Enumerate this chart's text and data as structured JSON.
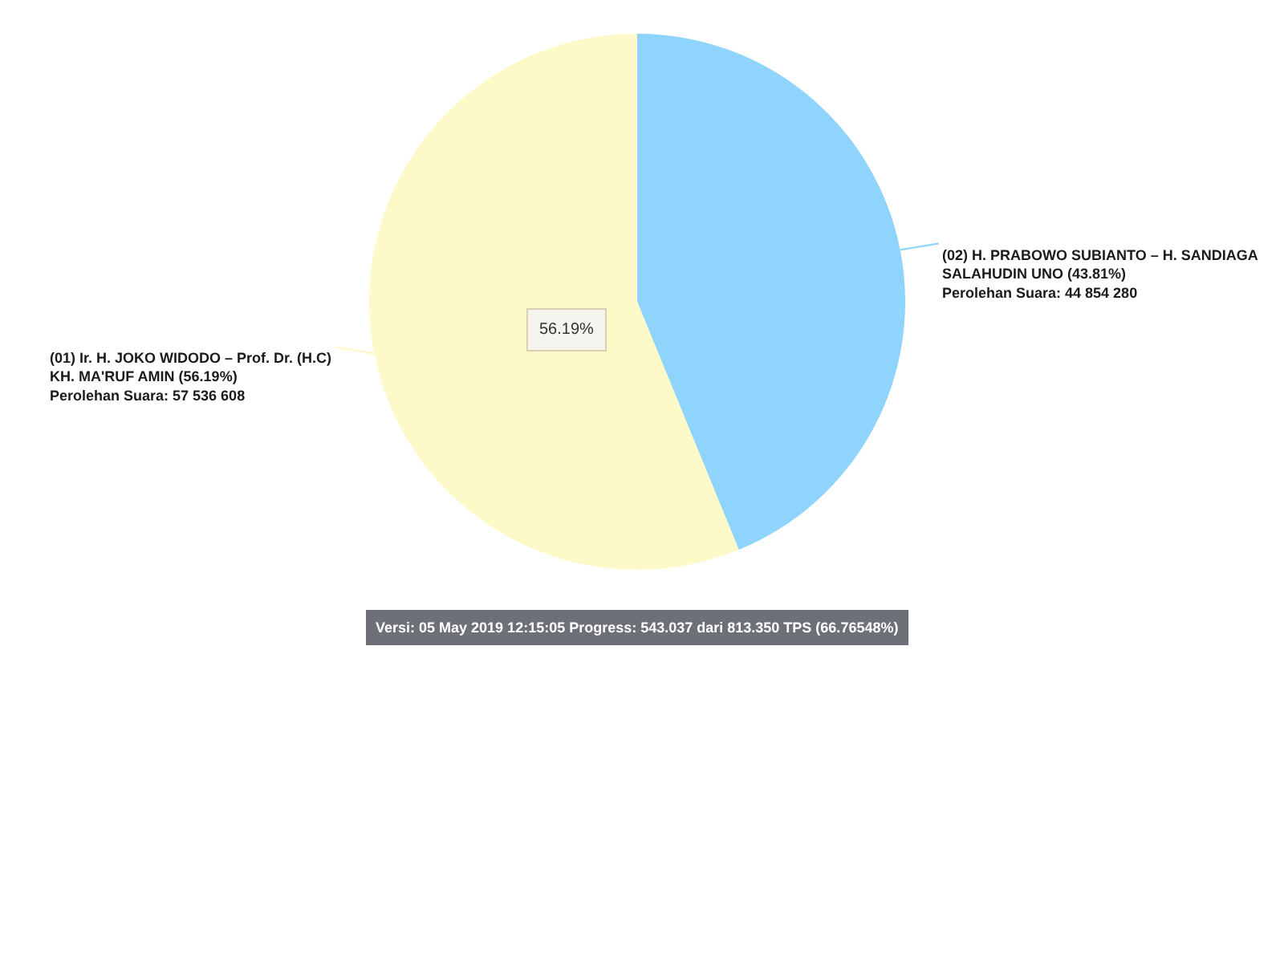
{
  "chart_data": {
    "type": "pie",
    "categories": [
      "(02) H. PRABOWO SUBIANTO – H. SANDIAGA SALAHUDIN UNO",
      "(01) Ir. H. JOKO WIDODO – Prof. Dr. (H.C) KH. MA'RUF AMIN"
    ],
    "values": [
      44854280,
      57536608
    ],
    "colors": [
      "#8fd4fc",
      "#fdf9c9"
    ],
    "value_labels": [
      "(43.81%)\nPerolehan Suara: 44 854 280",
      "(56.19%)\nPerolehan Suara: 57 536 608"
    ],
    "annotations": [
      "56.19%",
      "Versi: 05 May 2019 12:15:05 Progress: 543.037 dari 813.350 TPS (66.76548%)"
    ]
  }
}
